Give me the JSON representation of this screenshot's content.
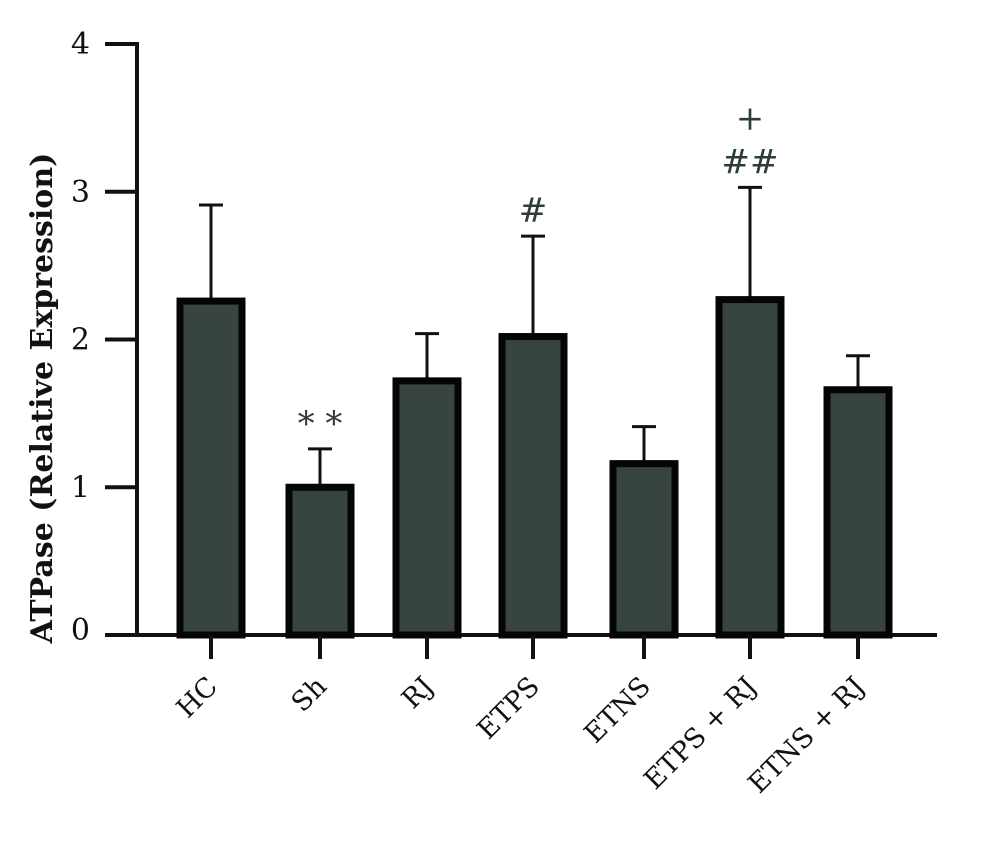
{
  "chart_data": {
    "type": "bar",
    "title": "",
    "xlabel": "",
    "ylabel": "ATPase (Relative Expression)",
    "ylim": [
      0,
      4
    ],
    "yticks": [
      0,
      1,
      2,
      3,
      4
    ],
    "grid": false,
    "legend": "none",
    "categories": [
      "HC",
      "Sh",
      "RJ",
      "ETPS",
      "ETNS",
      "ETPS + RJ",
      "ETNS + RJ"
    ],
    "values": [
      2.26,
      1.0,
      1.72,
      2.02,
      1.16,
      2.27,
      1.66
    ],
    "error_upper": [
      0.65,
      0.26,
      0.32,
      0.68,
      0.25,
      0.76,
      0.23
    ],
    "annotations": [
      "",
      "* *",
      "",
      "#",
      "",
      "+\n##",
      ""
    ],
    "colors": {
      "bar_fill": "#38443f",
      "bar_edge": "#050505",
      "axis": "#111111",
      "annotation": "#2f3c3c"
    }
  }
}
